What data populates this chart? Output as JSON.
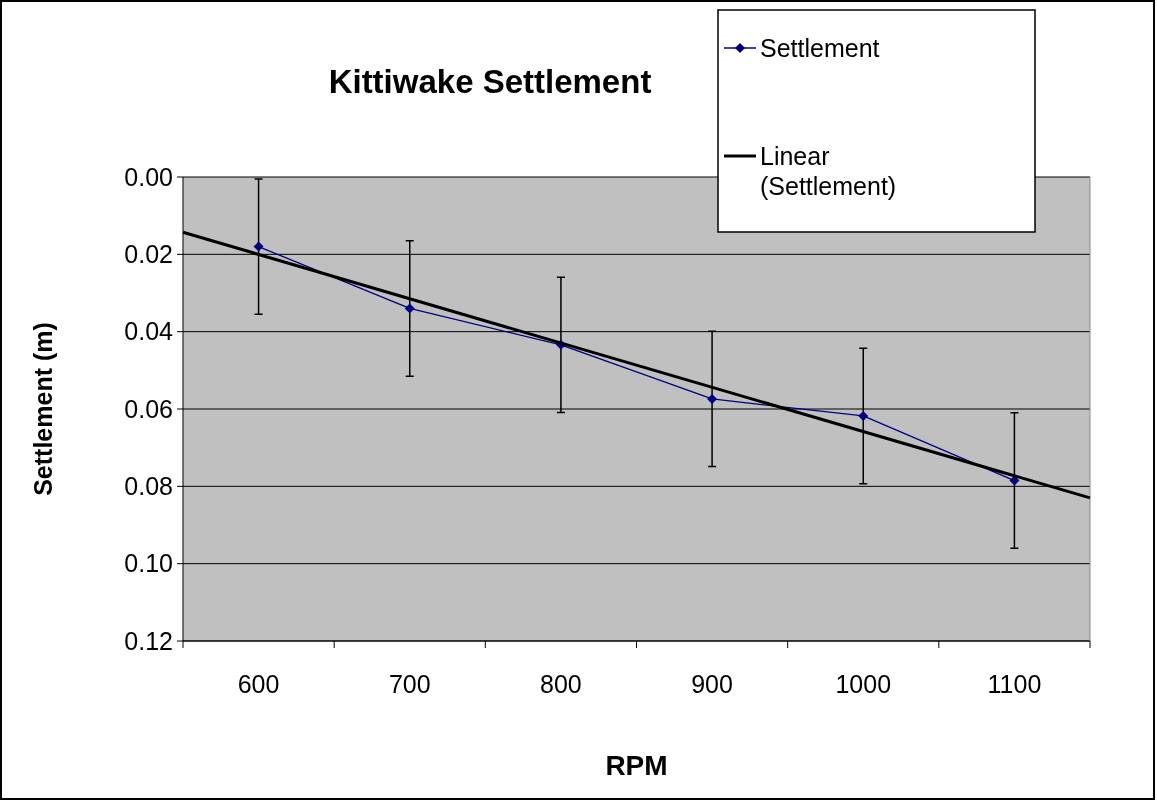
{
  "chart_data": {
    "type": "line",
    "title": "Kittiwake Settlement",
    "xlabel": "RPM",
    "ylabel": "Settlement (m)",
    "x": [
      600,
      700,
      800,
      900,
      1000,
      1100
    ],
    "series": [
      {
        "name": "Settlement",
        "color": "#000080",
        "values": [
          0.018,
          0.034,
          0.0434,
          0.0574,
          0.0618,
          0.0785
        ],
        "errors": [
          0.0175,
          0.0175,
          0.0175,
          0.0175,
          0.0175,
          0.0175
        ],
        "marker": "diamond"
      },
      {
        "name": "Linear (Settlement)",
        "type": "line",
        "color": "#000000",
        "x": [
          550,
          1150
        ],
        "values": [
          0.0143,
          0.083
        ],
        "marker": "none"
      }
    ],
    "xlim": [
      550,
      1150
    ],
    "xticks": [
      {
        "value": 550,
        "label": null
      },
      {
        "value": 600,
        "label": "600"
      },
      {
        "value": 650,
        "label": null
      },
      {
        "value": 700,
        "label": "700"
      },
      {
        "value": 750,
        "label": null
      },
      {
        "value": 800,
        "label": "800"
      },
      {
        "value": 850,
        "label": null
      },
      {
        "value": 900,
        "label": "900"
      },
      {
        "value": 950,
        "label": null
      },
      {
        "value": 1000,
        "label": "1000"
      },
      {
        "value": 1050,
        "label": null
      },
      {
        "value": 1100,
        "label": "1100"
      },
      {
        "value": 1150,
        "label": null
      }
    ],
    "ylim": [
      0.12,
      0
    ],
    "yticks": [
      {
        "value": 0,
        "label": "0.00"
      },
      {
        "value": 0.02,
        "label": "0.02"
      },
      {
        "value": 0.04,
        "label": "0.04"
      },
      {
        "value": 0.06,
        "label": "0.06"
      },
      {
        "value": 0.08,
        "label": "0.08"
      },
      {
        "value": 0.1,
        "label": "0.10"
      },
      {
        "value": 0.12,
        "label": "0.12"
      }
    ],
    "grid": "y",
    "legend": "top right",
    "line_style": "solid"
  }
}
